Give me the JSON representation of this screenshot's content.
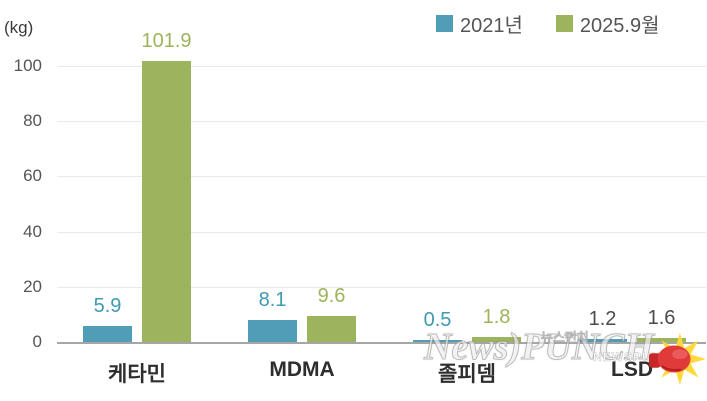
{
  "unit_label": "(kg)",
  "legend": {
    "items": [
      {
        "label": "2021년",
        "color": "#4f9db6"
      },
      {
        "label": "2025.9월",
        "color": "#9db45f"
      }
    ]
  },
  "watermark": {
    "main": "News)PUNCH",
    "korean": "뉴스펀치",
    "caps": "NEWSPUNCH",
    "glove_color": "#e03a3a",
    "burst_color": "#ffd93b"
  },
  "chart_data": {
    "type": "bar",
    "title": "",
    "unit": "kg",
    "categories": [
      "케타민",
      "MDMA",
      "졸피뎀",
      "LSD"
    ],
    "series": [
      {
        "name": "2021년",
        "color": "#4f9db6",
        "values": [
          5.9,
          8.1,
          0.5,
          1.2
        ],
        "label_colors": [
          "#3f9ab2",
          "#3f9ab2",
          "#3f9ab2",
          "#4a4a4a"
        ]
      },
      {
        "name": "2025.9월",
        "color": "#9db45f",
        "values": [
          101.9,
          9.6,
          1.8,
          1.6
        ],
        "label_colors": [
          "#9cb45b",
          "#9cb45b",
          "#9cb45b",
          "#4a4a4a"
        ]
      }
    ],
    "ylabel": "(kg)",
    "yticks": [
      0,
      20,
      40,
      60,
      80,
      100
    ],
    "ylim": [
      0,
      100
    ],
    "grid": "horizontal",
    "legend_position": "top-right"
  }
}
